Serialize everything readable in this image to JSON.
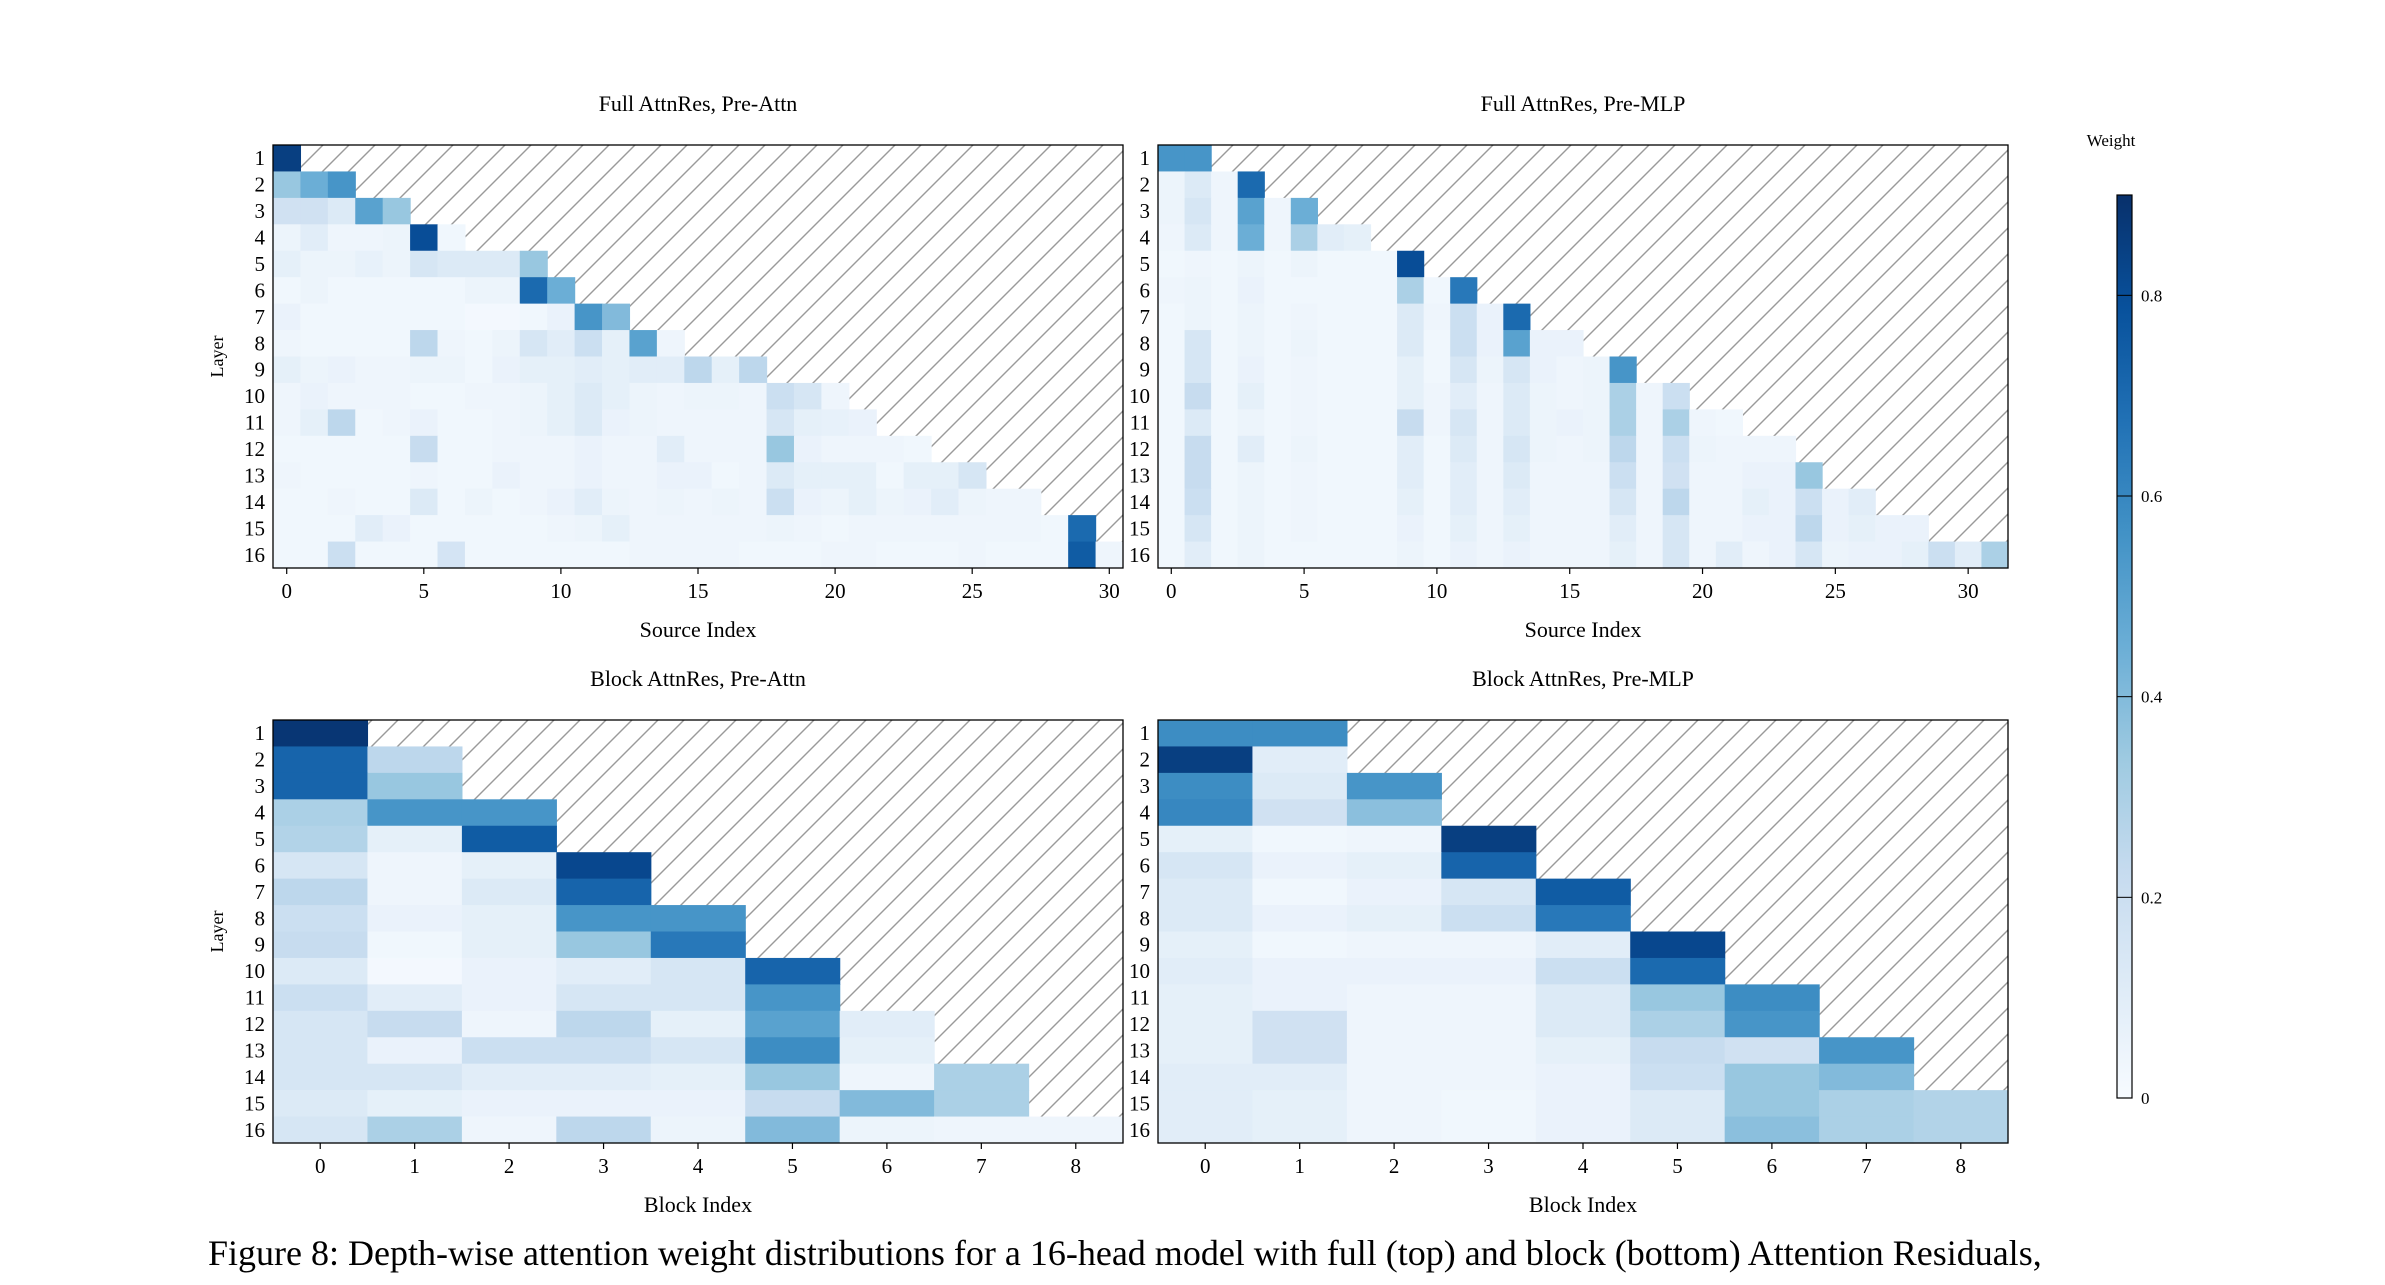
{
  "colorbar": {
    "title": "Weight",
    "ticks": [
      0,
      0.2,
      0.4,
      0.6,
      0.8
    ],
    "tick_labels": [
      "0",
      "0.2",
      "0.4",
      "0.6",
      "0.8"
    ],
    "max": 0.9,
    "color_low": "#f7fbff",
    "color_high": "#08306b"
  },
  "caption": "Figure 8: Depth-wise attention weight distributions for a 16-head model with full (top) and block (bottom) Attention Residuals,",
  "chart_data": [
    {
      "type": "heatmap",
      "title": "Full AttnRes, Pre-Attn",
      "xlabel": "Source Index",
      "ylabel": "Layer",
      "xticks": [
        0,
        5,
        10,
        15,
        20,
        25,
        30
      ],
      "rows": [
        "1",
        "2",
        "3",
        "4",
        "5",
        "6",
        "7",
        "8",
        "9",
        "10",
        "11",
        "12",
        "13",
        "14",
        "15",
        "16"
      ],
      "ncols": 31,
      "values": [
        [
          0.85
        ],
        [
          0.35,
          0.45,
          0.55
        ],
        [
          0.18,
          0.18,
          0.12,
          0.5,
          0.35
        ],
        [
          0.05,
          0.1,
          0.04,
          0.04,
          0.05,
          0.8,
          0.03
        ],
        [
          0.08,
          0.05,
          0.05,
          0.07,
          0.05,
          0.15,
          0.12,
          0.12,
          0.12,
          0.35
        ],
        [
          0.03,
          0.05,
          0.03,
          0.03,
          0.03,
          0.03,
          0.03,
          0.05,
          0.05,
          0.7,
          0.45
        ],
        [
          0.06,
          0.03,
          0.03,
          0.03,
          0.03,
          0.03,
          0.03,
          0.02,
          0.02,
          0.03,
          0.06,
          0.55,
          0.4
        ],
        [
          0.04,
          0.03,
          0.03,
          0.03,
          0.03,
          0.25,
          0.04,
          0.03,
          0.05,
          0.15,
          0.1,
          0.2,
          0.08,
          0.5,
          0.04
        ],
        [
          0.08,
          0.05,
          0.06,
          0.04,
          0.04,
          0.05,
          0.05,
          0.03,
          0.06,
          0.08,
          0.08,
          0.1,
          0.08,
          0.1,
          0.1,
          0.25,
          0.08,
          0.25
        ],
        [
          0.04,
          0.06,
          0.04,
          0.04,
          0.04,
          0.03,
          0.03,
          0.04,
          0.04,
          0.05,
          0.08,
          0.12,
          0.08,
          0.05,
          0.04,
          0.05,
          0.05,
          0.04,
          0.2,
          0.15,
          0.04
        ],
        [
          0.04,
          0.08,
          0.25,
          0.03,
          0.04,
          0.06,
          0.03,
          0.03,
          0.04,
          0.05,
          0.08,
          0.12,
          0.06,
          0.05,
          0.04,
          0.04,
          0.04,
          0.04,
          0.15,
          0.08,
          0.07,
          0.06
        ],
        [
          0.03,
          0.03,
          0.03,
          0.03,
          0.03,
          0.22,
          0.03,
          0.03,
          0.04,
          0.04,
          0.04,
          0.06,
          0.04,
          0.04,
          0.1,
          0.04,
          0.04,
          0.04,
          0.35,
          0.06,
          0.04,
          0.04,
          0.04,
          0.03
        ],
        [
          0.04,
          0.03,
          0.03,
          0.03,
          0.03,
          0.04,
          0.03,
          0.03,
          0.06,
          0.04,
          0.04,
          0.06,
          0.04,
          0.04,
          0.06,
          0.06,
          0.03,
          0.04,
          0.12,
          0.08,
          0.08,
          0.08,
          0.03,
          0.08,
          0.08,
          0.15
        ],
        [
          0.03,
          0.03,
          0.04,
          0.03,
          0.03,
          0.12,
          0.03,
          0.05,
          0.03,
          0.04,
          0.06,
          0.1,
          0.05,
          0.04,
          0.05,
          0.04,
          0.05,
          0.04,
          0.2,
          0.06,
          0.05,
          0.08,
          0.05,
          0.06,
          0.1,
          0.05,
          0.04,
          0.04
        ],
        [
          0.03,
          0.03,
          0.03,
          0.1,
          0.06,
          0.03,
          0.03,
          0.03,
          0.03,
          0.03,
          0.04,
          0.05,
          0.08,
          0.04,
          0.04,
          0.04,
          0.04,
          0.04,
          0.05,
          0.04,
          0.03,
          0.04,
          0.04,
          0.04,
          0.04,
          0.04,
          0.04,
          0.04,
          0.03,
          0.7
        ],
        [
          0.03,
          0.03,
          0.2,
          0.03,
          0.03,
          0.03,
          0.16,
          0.03,
          0.03,
          0.03,
          0.03,
          0.03,
          0.03,
          0.04,
          0.04,
          0.04,
          0.04,
          0.03,
          0.03,
          0.03,
          0.04,
          0.04,
          0.03,
          0.03,
          0.03,
          0.04,
          0.03,
          0.03,
          0.03,
          0.75,
          0.04
        ]
      ]
    },
    {
      "type": "heatmap",
      "title": "Full AttnRes, Pre-MLP",
      "xlabel": "Source Index",
      "ylabel": "",
      "xticks": [
        0,
        5,
        10,
        15,
        20,
        25,
        30
      ],
      "rows": [
        "1",
        "2",
        "3",
        "4",
        "5",
        "6",
        "7",
        "8",
        "9",
        "10",
        "11",
        "12",
        "13",
        "14",
        "15",
        "16"
      ],
      "ncols": 32,
      "values": [
        [
          0.55,
          0.55
        ],
        [
          0.05,
          0.12,
          0.04,
          0.7
        ],
        [
          0.05,
          0.15,
          0.04,
          0.5,
          0.04,
          0.45
        ],
        [
          0.04,
          0.12,
          0.04,
          0.45,
          0.04,
          0.3,
          0.1,
          0.08
        ],
        [
          0.03,
          0.04,
          0.03,
          0.05,
          0.03,
          0.05,
          0.03,
          0.03,
          0.03,
          0.8
        ],
        [
          0.04,
          0.05,
          0.03,
          0.06,
          0.03,
          0.03,
          0.03,
          0.03,
          0.03,
          0.3,
          0.03,
          0.65
        ],
        [
          0.03,
          0.05,
          0.03,
          0.05,
          0.03,
          0.04,
          0.03,
          0.03,
          0.03,
          0.12,
          0.04,
          0.2,
          0.06,
          0.7
        ],
        [
          0.03,
          0.15,
          0.03,
          0.05,
          0.03,
          0.05,
          0.03,
          0.03,
          0.03,
          0.12,
          0.03,
          0.2,
          0.06,
          0.5,
          0.06,
          0.06
        ],
        [
          0.03,
          0.15,
          0.03,
          0.06,
          0.03,
          0.04,
          0.03,
          0.03,
          0.03,
          0.08,
          0.03,
          0.15,
          0.05,
          0.15,
          0.06,
          0.04,
          0.05,
          0.55
        ],
        [
          0.03,
          0.22,
          0.03,
          0.08,
          0.03,
          0.04,
          0.03,
          0.03,
          0.03,
          0.08,
          0.04,
          0.1,
          0.04,
          0.12,
          0.05,
          0.04,
          0.05,
          0.3,
          0.04,
          0.2
        ],
        [
          0.03,
          0.12,
          0.03,
          0.05,
          0.03,
          0.04,
          0.03,
          0.03,
          0.03,
          0.22,
          0.04,
          0.15,
          0.04,
          0.12,
          0.05,
          0.06,
          0.05,
          0.3,
          0.04,
          0.3,
          0.04,
          0.03
        ],
        [
          0.03,
          0.22,
          0.03,
          0.1,
          0.03,
          0.05,
          0.03,
          0.03,
          0.03,
          0.1,
          0.03,
          0.12,
          0.04,
          0.15,
          0.05,
          0.04,
          0.05,
          0.25,
          0.04,
          0.2,
          0.05,
          0.04,
          0.04,
          0.04
        ],
        [
          0.03,
          0.22,
          0.03,
          0.05,
          0.03,
          0.04,
          0.03,
          0.03,
          0.03,
          0.1,
          0.03,
          0.1,
          0.04,
          0.12,
          0.04,
          0.04,
          0.04,
          0.2,
          0.04,
          0.18,
          0.04,
          0.04,
          0.06,
          0.06,
          0.35
        ],
        [
          0.03,
          0.2,
          0.03,
          0.05,
          0.03,
          0.04,
          0.03,
          0.03,
          0.03,
          0.08,
          0.03,
          0.1,
          0.04,
          0.1,
          0.04,
          0.04,
          0.04,
          0.15,
          0.04,
          0.25,
          0.04,
          0.04,
          0.08,
          0.06,
          0.2,
          0.06,
          0.1
        ],
        [
          0.03,
          0.15,
          0.03,
          0.05,
          0.03,
          0.04,
          0.03,
          0.03,
          0.03,
          0.06,
          0.03,
          0.08,
          0.04,
          0.08,
          0.04,
          0.04,
          0.04,
          0.1,
          0.04,
          0.15,
          0.04,
          0.04,
          0.06,
          0.06,
          0.25,
          0.06,
          0.08,
          0.06,
          0.06
        ],
        [
          0.03,
          0.1,
          0.03,
          0.05,
          0.03,
          0.03,
          0.03,
          0.03,
          0.03,
          0.05,
          0.03,
          0.06,
          0.04,
          0.06,
          0.04,
          0.04,
          0.04,
          0.08,
          0.04,
          0.15,
          0.04,
          0.1,
          0.04,
          0.06,
          0.15,
          0.05,
          0.06,
          0.06,
          0.08,
          0.2,
          0.1,
          0.3
        ]
      ]
    },
    {
      "type": "heatmap",
      "title": "Block AttnRes, Pre-Attn",
      "xlabel": "Block Index",
      "ylabel": "Layer",
      "xticks": [
        0,
        1,
        2,
        3,
        4,
        5,
        6,
        7,
        8
      ],
      "rows": [
        "1",
        "2",
        "3",
        "4",
        "5",
        "6",
        "7",
        "8",
        "9",
        "10",
        "11",
        "12",
        "13",
        "14",
        "15",
        "16"
      ],
      "ncols": 9,
      "values": [
        [
          0.88
        ],
        [
          0.72,
          0.25
        ],
        [
          0.72,
          0.35
        ],
        [
          0.3,
          0.55,
          0.55
        ],
        [
          0.28,
          0.08,
          0.75
        ],
        [
          0.15,
          0.04,
          0.08,
          0.82
        ],
        [
          0.25,
          0.04,
          0.12,
          0.72
        ],
        [
          0.2,
          0.06,
          0.08,
          0.55,
          0.55
        ],
        [
          0.22,
          0.03,
          0.08,
          0.35,
          0.65
        ],
        [
          0.12,
          0.02,
          0.06,
          0.1,
          0.15,
          0.72
        ],
        [
          0.2,
          0.1,
          0.06,
          0.15,
          0.15,
          0.55
        ],
        [
          0.15,
          0.22,
          0.04,
          0.25,
          0.08,
          0.5,
          0.1
        ],
        [
          0.15,
          0.06,
          0.2,
          0.2,
          0.15,
          0.58,
          0.08
        ],
        [
          0.15,
          0.15,
          0.1,
          0.1,
          0.08,
          0.35,
          0.04,
          0.3
        ],
        [
          0.12,
          0.08,
          0.06,
          0.06,
          0.06,
          0.22,
          0.4,
          0.3
        ],
        [
          0.15,
          0.3,
          0.04,
          0.25,
          0.05,
          0.4,
          0.05,
          0.04,
          0.04
        ]
      ]
    },
    {
      "type": "heatmap",
      "title": "Block AttnRes, Pre-MLP",
      "xlabel": "Block Index",
      "ylabel": "",
      "xticks": [
        0,
        1,
        2,
        3,
        4,
        5,
        6,
        7,
        8
      ],
      "rows": [
        "1",
        "2",
        "3",
        "4",
        "5",
        "6",
        "7",
        "8",
        "9",
        "10",
        "11",
        "12",
        "13",
        "14",
        "15",
        "16"
      ],
      "ncols": 9,
      "values": [
        [
          0.58,
          0.58
        ],
        [
          0.85,
          0.1
        ],
        [
          0.58,
          0.12,
          0.55
        ],
        [
          0.6,
          0.18,
          0.38
        ],
        [
          0.08,
          0.03,
          0.04,
          0.85
        ],
        [
          0.15,
          0.06,
          0.08,
          0.72
        ],
        [
          0.12,
          0.03,
          0.06,
          0.15,
          0.75
        ],
        [
          0.12,
          0.06,
          0.08,
          0.2,
          0.65
        ],
        [
          0.08,
          0.03,
          0.04,
          0.04,
          0.1,
          0.82
        ],
        [
          0.1,
          0.06,
          0.06,
          0.06,
          0.2,
          0.7
        ],
        [
          0.08,
          0.06,
          0.04,
          0.04,
          0.12,
          0.35,
          0.58
        ],
        [
          0.08,
          0.18,
          0.04,
          0.04,
          0.12,
          0.3,
          0.55
        ],
        [
          0.08,
          0.18,
          0.04,
          0.04,
          0.08,
          0.22,
          0.18,
          0.55
        ],
        [
          0.1,
          0.1,
          0.04,
          0.04,
          0.06,
          0.2,
          0.35,
          0.4
        ],
        [
          0.1,
          0.08,
          0.04,
          0.03,
          0.06,
          0.12,
          0.35,
          0.3,
          0.28
        ],
        [
          0.1,
          0.08,
          0.04,
          0.03,
          0.06,
          0.12,
          0.38,
          0.3,
          0.28
        ]
      ]
    }
  ]
}
